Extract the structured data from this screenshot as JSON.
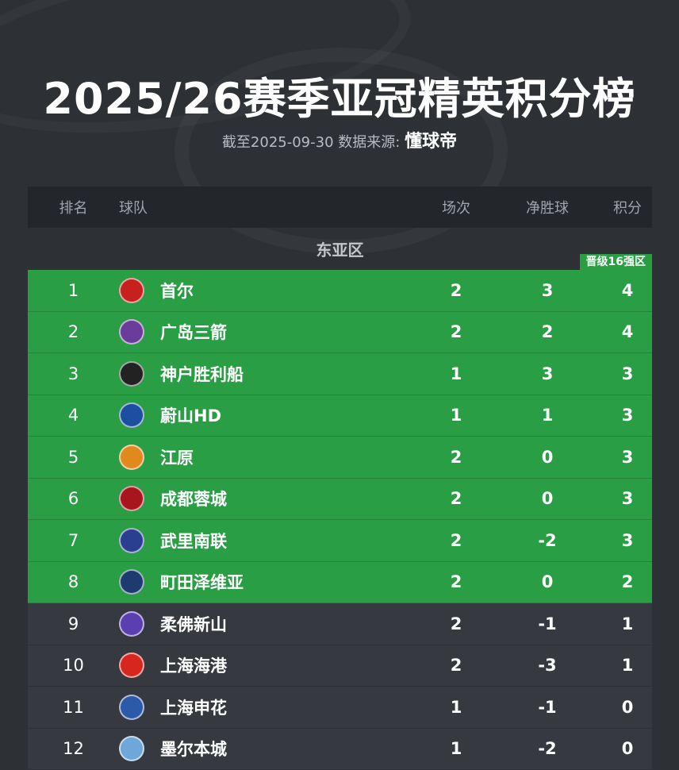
{
  "title": "2025/26赛季亚冠精英积分榜",
  "subtitle": {
    "prefix": "截至2025-09-30 数据来源:",
    "source": "懂球帝"
  },
  "columns": {
    "rank": "排名",
    "team": "球队",
    "played": "场次",
    "gd": "净胜球",
    "pts": "积分"
  },
  "region": "东亚区",
  "promo_badge": "晋级16强区",
  "colors": {
    "promo": "#2a9e44",
    "row": "#363a40",
    "header": "#23262a",
    "background": "#2d3035"
  },
  "rows": [
    {
      "rank": "1",
      "team": "首尔",
      "played": "2",
      "gd": "3",
      "pts": "4",
      "promo": true,
      "logo": "#c8201e"
    },
    {
      "rank": "2",
      "team": "广岛三箭",
      "played": "2",
      "gd": "2",
      "pts": "4",
      "promo": true,
      "logo": "#6a3d9a"
    },
    {
      "rank": "3",
      "team": "神户胜利船",
      "played": "1",
      "gd": "3",
      "pts": "3",
      "promo": true,
      "logo": "#222222"
    },
    {
      "rank": "4",
      "team": "蔚山HD",
      "played": "1",
      "gd": "1",
      "pts": "3",
      "promo": true,
      "logo": "#1c4fa0"
    },
    {
      "rank": "5",
      "team": "江原",
      "played": "2",
      "gd": "0",
      "pts": "3",
      "promo": true,
      "logo": "#e08a1e"
    },
    {
      "rank": "6",
      "team": "成都蓉城",
      "played": "2",
      "gd": "0",
      "pts": "3",
      "promo": true,
      "logo": "#a8151c"
    },
    {
      "rank": "7",
      "team": "武里南联",
      "played": "2",
      "gd": "-2",
      "pts": "3",
      "promo": true,
      "logo": "#2a3f8f"
    },
    {
      "rank": "8",
      "team": "町田泽维亚",
      "played": "2",
      "gd": "0",
      "pts": "2",
      "promo": true,
      "logo": "#1d3b6e"
    },
    {
      "rank": "9",
      "team": "柔佛新山",
      "played": "2",
      "gd": "-1",
      "pts": "1",
      "promo": false,
      "logo": "#5a3fb0"
    },
    {
      "rank": "10",
      "team": "上海海港",
      "played": "2",
      "gd": "-3",
      "pts": "1",
      "promo": false,
      "logo": "#d7261e"
    },
    {
      "rank": "11",
      "team": "上海申花",
      "played": "1",
      "gd": "-1",
      "pts": "0",
      "promo": false,
      "logo": "#2c5aa8"
    },
    {
      "rank": "12",
      "team": "墨尔本城",
      "played": "1",
      "gd": "-2",
      "pts": "0",
      "promo": false,
      "logo": "#6fa8d8"
    }
  ]
}
